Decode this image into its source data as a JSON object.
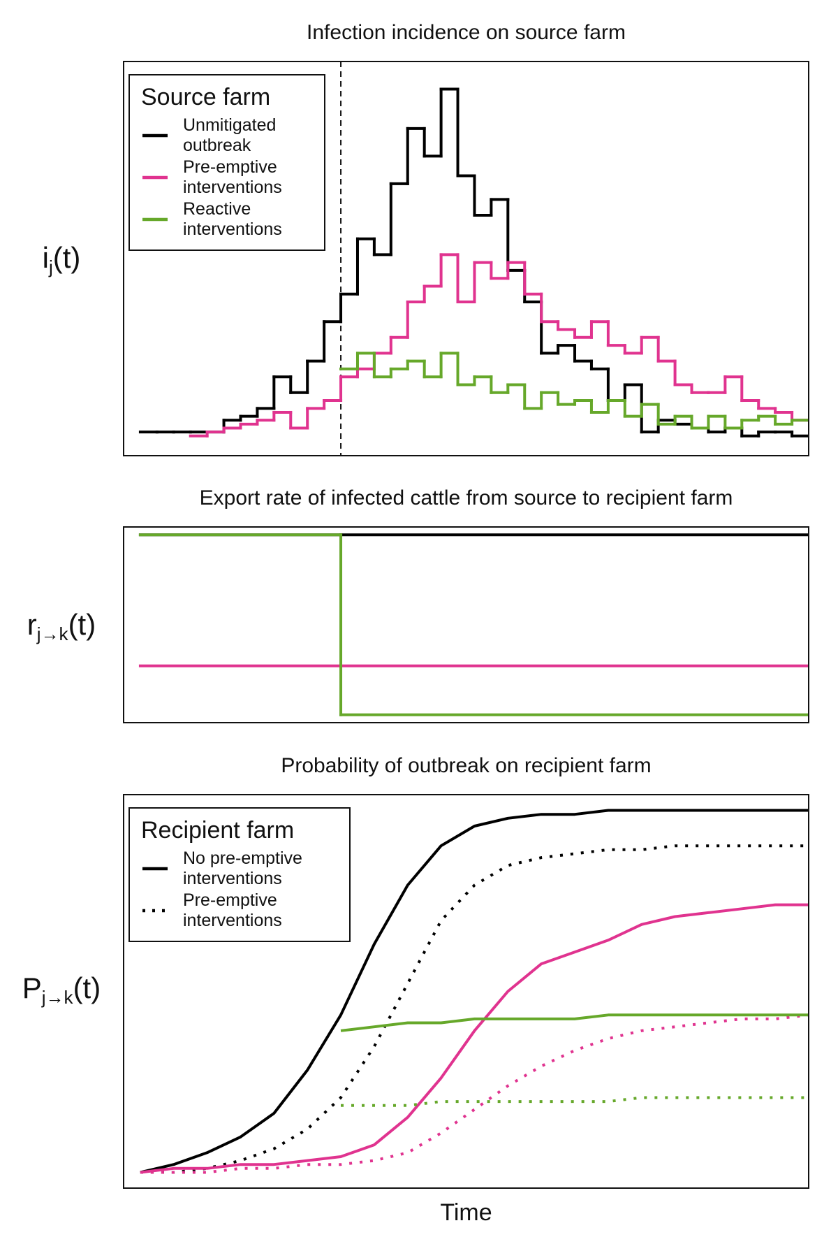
{
  "chart_data": [
    {
      "type": "step",
      "title": "Infection incidence on source farm",
      "ylabel": {
        "base": "i",
        "sub": "j",
        "suffix": "(t)"
      },
      "legend_title": "Source farm",
      "legend": "top-left",
      "xlim": [
        -1,
        40
      ],
      "ylim": [
        0,
        100
      ],
      "reference_line": {
        "x": 12,
        "style": "dashed"
      },
      "x": [
        0,
        1,
        2,
        3,
        4,
        5,
        6,
        7,
        8,
        9,
        10,
        11,
        12,
        13,
        14,
        15,
        16,
        17,
        18,
        19,
        20,
        21,
        22,
        23,
        24,
        25,
        26,
        27,
        28,
        29,
        30,
        31,
        32,
        33,
        34,
        35,
        36,
        37,
        38,
        39
      ],
      "series": [
        {
          "name": "Unmitigated outbreak",
          "color": "#000000",
          "values": [
            6,
            6,
            6,
            6,
            6,
            9,
            10,
            12,
            20,
            16,
            24,
            34,
            41,
            55,
            51,
            69,
            83,
            76,
            93,
            71,
            61,
            65,
            47,
            39,
            26,
            28,
            24,
            22,
            14,
            18,
            6,
            9,
            8,
            7,
            6,
            7,
            5,
            6,
            6,
            5
          ]
        },
        {
          "name": "Pre-emptive interventions",
          "color": "#e0338f",
          "values": [
            null,
            null,
            null,
            5,
            6,
            7,
            8,
            9,
            11,
            7,
            12,
            14,
            20,
            22,
            26,
            30,
            39,
            43,
            51,
            39,
            49,
            45,
            49,
            41,
            34,
            32,
            30,
            34,
            28,
            26,
            30,
            24,
            18,
            16,
            16,
            20,
            14,
            12,
            11,
            9
          ]
        },
        {
          "name": "Reactive interventions",
          "color": "#66a82a",
          "values": [
            null,
            null,
            null,
            null,
            null,
            null,
            null,
            null,
            null,
            null,
            null,
            null,
            22,
            26,
            20,
            22,
            24,
            20,
            26,
            18,
            20,
            16,
            18,
            12,
            16,
            13,
            14,
            11,
            14,
            10,
            13,
            8,
            10,
            7,
            10,
            7,
            9,
            10,
            8,
            9
          ]
        }
      ]
    },
    {
      "type": "step",
      "title": "Export rate of infected cattle from source to recipient farm",
      "ylabel": {
        "base": "r",
        "sub": "j→k",
        "suffix": "(t)"
      },
      "xlim": [
        -1,
        40
      ],
      "ylim": [
        0,
        100
      ],
      "x": [
        0,
        12
      ],
      "series": [
        {
          "color": "#000000",
          "values": [
            96,
            96
          ]
        },
        {
          "color": "#e0338f",
          "values": [
            29,
            29
          ]
        },
        {
          "color": "#66a82a",
          "values": [
            96,
            4
          ]
        }
      ]
    },
    {
      "type": "line",
      "title": "Probability of outbreak on recipient farm",
      "ylabel": {
        "base": "P",
        "sub": "j→k",
        "suffix": "(t)"
      },
      "xlabel": "Time",
      "legend_title": "Recipient farm",
      "legend": "top-left",
      "legend_entries": [
        {
          "label": "No pre-emptive interventions",
          "style": "solid",
          "color": "#000000"
        },
        {
          "label": "Pre-emptive interventions",
          "style": "dotted",
          "color": "#000000"
        }
      ],
      "xlim": [
        -1,
        40
      ],
      "ylim": [
        0,
        100
      ],
      "x": [
        0,
        2,
        4,
        6,
        8,
        10,
        12,
        14,
        16,
        18,
        20,
        22,
        24,
        26,
        28,
        30,
        32,
        34,
        36,
        38,
        40
      ],
      "series": [
        {
          "color": "#000000",
          "style": "solid",
          "values": [
            4,
            6,
            9,
            13,
            19,
            30,
            44,
            62,
            77,
            87,
            92,
            94,
            95,
            95,
            96,
            96,
            96,
            96,
            96,
            96,
            96
          ]
        },
        {
          "color": "#000000",
          "style": "dotted",
          "values": [
            4,
            4,
            5,
            7,
            10,
            15,
            23,
            36,
            52,
            68,
            77,
            82,
            84,
            85,
            86,
            86,
            87,
            87,
            87,
            87,
            87
          ]
        },
        {
          "color": "#e0338f",
          "style": "solid",
          "values": [
            4,
            5,
            5,
            6,
            6,
            7,
            8,
            11,
            18,
            28,
            40,
            50,
            57,
            60,
            63,
            67,
            69,
            70,
            71,
            72,
            72
          ]
        },
        {
          "color": "#e0338f",
          "style": "dotted",
          "values": [
            4,
            4,
            4,
            5,
            5,
            6,
            6,
            7,
            9,
            14,
            20,
            26,
            31,
            35,
            38,
            40,
            41,
            42,
            43,
            43,
            44
          ]
        },
        {
          "color": "#66a82a",
          "style": "solid",
          "values": [
            null,
            null,
            null,
            null,
            null,
            null,
            40,
            41,
            42,
            42,
            43,
            43,
            43,
            43,
            44,
            44,
            44,
            44,
            44,
            44,
            44
          ]
        },
        {
          "color": "#66a82a",
          "style": "dotted",
          "values": [
            null,
            null,
            null,
            null,
            null,
            null,
            21,
            21,
            21,
            22,
            22,
            22,
            22,
            22,
            22,
            23,
            23,
            23,
            23,
            23,
            23
          ]
        }
      ]
    }
  ]
}
